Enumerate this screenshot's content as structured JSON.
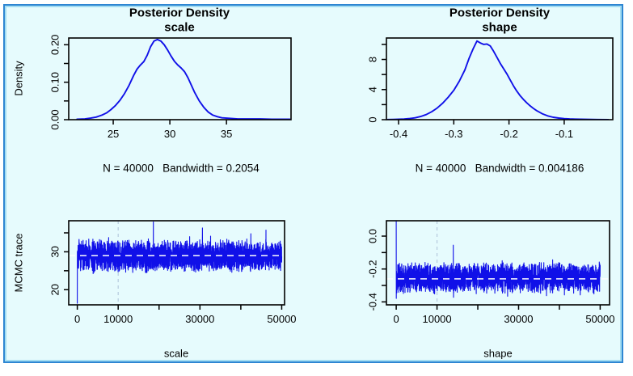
{
  "style": {
    "panel_bg": "#e6fbfd",
    "panel_border": "#2e86d2",
    "panel_border_inner": "#9fd6f2",
    "axis_color": "#000000",
    "line_color": "#1010e8",
    "hline_color": "#ffffff",
    "vline_color": "#b5cade"
  },
  "chart_data": [
    {
      "id": "posterior-density-scale",
      "type": "line",
      "title": "Posterior Density",
      "subtitle": "scale",
      "ylabel": "Density",
      "xlabel": "",
      "footer": "N = 40000   Bandwidth = 0.2054",
      "legend_position": "none",
      "grid": false,
      "xlim": [
        21.07,
        40.7
      ],
      "ylim": [
        0,
        0.218
      ],
      "xticks": [
        25,
        30,
        35
      ],
      "xtick_labels": [
        "25",
        "30",
        "35"
      ],
      "yticks": [
        0,
        0.05,
        0.1,
        0.15,
        0.2
      ],
      "ytick_labels": [
        "0.00",
        "",
        "0.10",
        "",
        "0.20"
      ],
      "x": [
        21.8,
        22.5,
        23,
        23.5,
        24,
        24.4,
        24.8,
        25.2,
        25.6,
        26,
        26.4,
        26.8,
        27.1,
        27.4,
        27.7,
        28,
        28.3,
        28.6,
        28.9,
        29.2,
        29.5,
        29.8,
        30.1,
        30.4,
        30.7,
        31,
        31.3,
        31.6,
        31.9,
        32.2,
        32.6,
        33,
        33.4,
        33.8,
        34.2,
        34.6,
        35,
        35.5,
        36,
        37,
        38,
        39,
        40,
        40.6
      ],
      "y": [
        0.001,
        0.002,
        0.004,
        0.007,
        0.012,
        0.018,
        0.027,
        0.038,
        0.052,
        0.07,
        0.092,
        0.118,
        0.135,
        0.146,
        0.155,
        0.172,
        0.195,
        0.21,
        0.214,
        0.21,
        0.2,
        0.186,
        0.17,
        0.156,
        0.146,
        0.138,
        0.128,
        0.112,
        0.092,
        0.072,
        0.05,
        0.033,
        0.02,
        0.012,
        0.008,
        0.005,
        0.004,
        0.003,
        0.002,
        0.002,
        0.002,
        0.001,
        0.001,
        0.001
      ]
    },
    {
      "id": "posterior-density-shape",
      "type": "line",
      "title": "Posterior Density",
      "subtitle": "shape",
      "ylabel": "",
      "xlabel": "",
      "footer": "N = 40000   Bandwidth = 0.004186",
      "legend_position": "none",
      "grid": false,
      "xlim": [
        -0.422,
        -0.012
      ],
      "ylim": [
        0,
        10.85
      ],
      "xticks": [
        -0.4,
        -0.3,
        -0.2,
        -0.1
      ],
      "xtick_labels": [
        "-0.4",
        "-0.3",
        "-0.2",
        "-0.1"
      ],
      "yticks": [
        0,
        2,
        4,
        6,
        8,
        10
      ],
      "ytick_labels": [
        "0",
        "",
        "4",
        "",
        "8",
        ""
      ],
      "x": [
        -0.42,
        -0.41,
        -0.4,
        -0.39,
        -0.38,
        -0.37,
        -0.36,
        -0.35,
        -0.34,
        -0.33,
        -0.32,
        -0.31,
        -0.3,
        -0.29,
        -0.28,
        -0.272,
        -0.265,
        -0.258,
        -0.252,
        -0.246,
        -0.24,
        -0.234,
        -0.228,
        -0.222,
        -0.216,
        -0.21,
        -0.204,
        -0.198,
        -0.192,
        -0.186,
        -0.18,
        -0.174,
        -0.168,
        -0.162,
        -0.156,
        -0.15,
        -0.14,
        -0.13,
        -0.12,
        -0.11,
        -0.1,
        -0.09,
        -0.08,
        -0.06,
        -0.04,
        -0.02
      ],
      "y": [
        0.02,
        0.03,
        0.05,
        0.09,
        0.15,
        0.25,
        0.42,
        0.68,
        1.05,
        1.55,
        2.2,
        3.0,
        3.9,
        5.1,
        6.6,
        8.2,
        9.4,
        10.45,
        10.2,
        10.0,
        10.05,
        9.8,
        9.1,
        8.3,
        7.5,
        6.8,
        6.1,
        5.3,
        4.5,
        3.8,
        3.2,
        2.7,
        2.25,
        1.85,
        1.5,
        1.2,
        0.8,
        0.5,
        0.32,
        0.21,
        0.14,
        0.1,
        0.07,
        0.04,
        0.02,
        0.01
      ]
    },
    {
      "id": "mcmc-trace-scale",
      "type": "trace",
      "title": "",
      "subtitle": "",
      "ylabel": "MCMC trace",
      "xlabel": "scale",
      "grid": false,
      "xlim": [
        -2100,
        50700
      ],
      "ylim": [
        16,
        38.2
      ],
      "xticks": [
        0,
        10000,
        20000,
        30000,
        40000,
        50000
      ],
      "xtick_labels": [
        "0",
        "10000",
        "",
        "30000",
        "",
        "50000"
      ],
      "yticks": [
        20,
        25,
        30,
        35
      ],
      "ytick_labels": [
        "20",
        "",
        "30",
        ""
      ],
      "hline": 29,
      "vline": 10000,
      "trace": {
        "seed": 7,
        "n": 2800,
        "x_max": 50000,
        "mean": 29,
        "amp": 4.6,
        "spike_prob": 0.06,
        "spike_amp": 2.8,
        "start": 16.4,
        "forced": [
          {
            "t": 18600,
            "v": 37.9
          },
          {
            "t": 30600,
            "v": 36.3
          }
        ]
      }
    },
    {
      "id": "mcmc-trace-shape",
      "type": "trace",
      "title": "",
      "subtitle": "",
      "ylabel": "",
      "xlabel": "shape",
      "grid": false,
      "xlim": [
        -2400,
        52300
      ],
      "ylim": [
        -0.418,
        0.0935
      ],
      "xticks": [
        0,
        10000,
        20000,
        30000,
        40000,
        50000
      ],
      "xtick_labels": [
        "0",
        "10000",
        "",
        "30000",
        "",
        "50000"
      ],
      "yticks": [
        -0.4,
        -0.3,
        -0.2,
        -0.1,
        0.0
      ],
      "ytick_labels": [
        "-0.4",
        "",
        "-0.2",
        "",
        "0.0"
      ],
      "hline": -0.26,
      "vline": 10000,
      "trace": {
        "seed": 13,
        "n": 2800,
        "x_max": 50000,
        "mean": -0.255,
        "amp": 0.1,
        "spike_prob": 0.06,
        "spike_amp": 0.04,
        "start": 0.092,
        "forced": [
          {
            "t": 14000,
            "v": -0.055
          }
        ]
      }
    }
  ]
}
